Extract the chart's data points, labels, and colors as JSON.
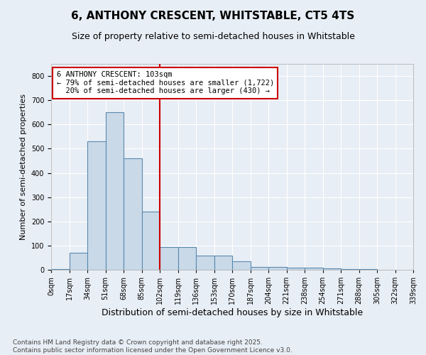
{
  "title": "6, ANTHONY CRESCENT, WHITSTABLE, CT5 4TS",
  "subtitle": "Size of property relative to semi-detached houses in Whitstable",
  "xlabel": "Distribution of semi-detached houses by size in Whitstable",
  "ylabel": "Number of semi-detached properties",
  "bar_values": [
    3,
    70,
    530,
    650,
    460,
    240,
    95,
    95,
    60,
    60,
    35,
    12,
    12,
    10,
    8,
    5,
    3,
    2,
    1
  ],
  "bin_labels": [
    "0sqm",
    "17sqm",
    "34sqm",
    "51sqm",
    "68sqm",
    "85sqm",
    "102sqm",
    "119sqm",
    "136sqm",
    "153sqm",
    "170sqm",
    "187sqm",
    "204sqm",
    "221sqm",
    "238sqm",
    "254sqm",
    "271sqm",
    "288sqm",
    "305sqm",
    "322sqm",
    "339sqm"
  ],
  "bar_color": "#c9d9e8",
  "bar_edge_color": "#5a8ab0",
  "vline_bin": 6,
  "vline_color": "#cc0000",
  "property_label": "6 ANTHONY CRESCENT: 103sqm",
  "pct_smaller": 79,
  "n_smaller": 1722,
  "pct_larger": 20,
  "n_larger": 430,
  "annotation_box_color": "#cc0000",
  "ylim": [
    0,
    850
  ],
  "yticks": [
    0,
    100,
    200,
    300,
    400,
    500,
    600,
    700,
    800
  ],
  "background_color": "#e8eef5",
  "footer": "Contains HM Land Registry data © Crown copyright and database right 2025.\nContains public sector information licensed under the Open Government Licence v3.0.",
  "title_fontsize": 11,
  "subtitle_fontsize": 9,
  "xlabel_fontsize": 9,
  "ylabel_fontsize": 8,
  "tick_fontsize": 7,
  "annotation_fontsize": 7.5,
  "footer_fontsize": 6.5
}
